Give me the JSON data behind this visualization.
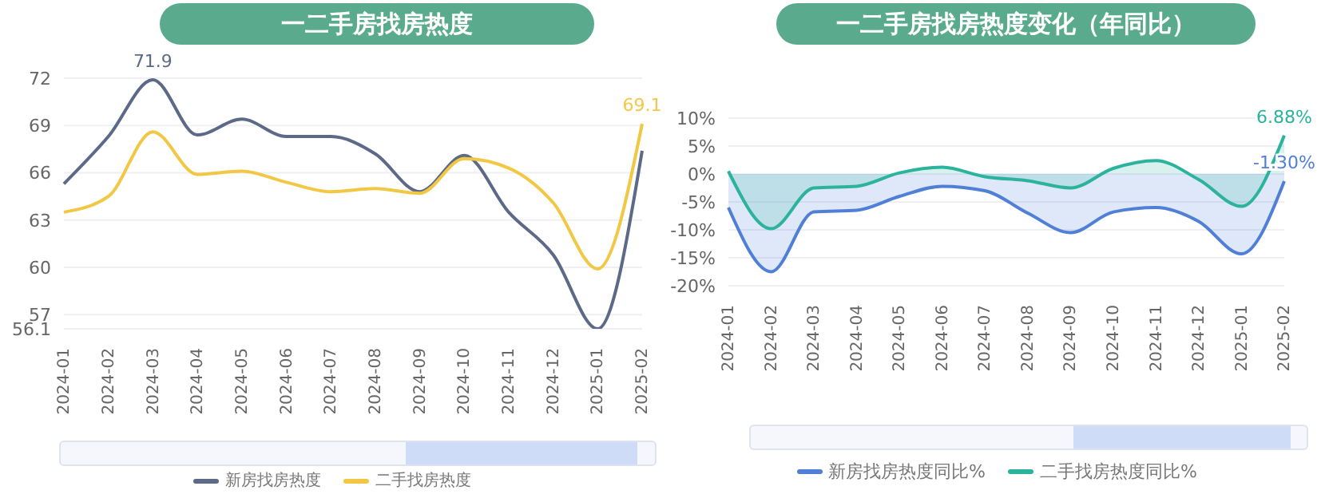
{
  "chart_data": [
    {
      "type": "line",
      "title": "一二手房找房热度",
      "categories": [
        "2024-01",
        "2024-02",
        "2024-03",
        "2024-04",
        "2024-05",
        "2024-06",
        "2024-07",
        "2024-08",
        "2024-09",
        "2024-10",
        "2024-11",
        "2024-12",
        "2025-01",
        "2025-02"
      ],
      "series": [
        {
          "name": "新房找房热度",
          "color": "#5c6a87",
          "values": [
            65.3,
            68.3,
            71.9,
            68.4,
            69.4,
            68.3,
            68.3,
            67.2,
            64.8,
            67.1,
            63.5,
            60.8,
            56.1,
            67.4
          ],
          "value_labels": [
            null,
            null,
            "71.9",
            null,
            null,
            null,
            null,
            null,
            null,
            null,
            null,
            null,
            null,
            null
          ]
        },
        {
          "name": "二手找房热度",
          "color": "#f2c744",
          "values": [
            63.5,
            64.5,
            68.6,
            65.9,
            66.1,
            65.4,
            64.8,
            65.0,
            64.7,
            66.9,
            66.3,
            64.1,
            59.9,
            69.1
          ],
          "value_labels": [
            null,
            null,
            null,
            null,
            null,
            null,
            null,
            null,
            null,
            null,
            null,
            null,
            null,
            "69.1"
          ]
        }
      ],
      "ylim": [
        56.1,
        72
      ],
      "yticks": [
        56.1,
        57,
        60,
        63,
        66,
        69,
        72
      ],
      "grid": "y",
      "legend": "bottom",
      "marker": "none"
    },
    {
      "type": "area",
      "title": "一二手房找房热度变化（年同比）",
      "categories": [
        "2024-01",
        "2024-02",
        "2024-03",
        "2024-04",
        "2024-05",
        "2024-06",
        "2024-07",
        "2024-08",
        "2024-09",
        "2024-10",
        "2024-11",
        "2024-12",
        "2025-01",
        "2025-02"
      ],
      "series": [
        {
          "name": "新房找房热度同比%",
          "color": "#4f7fd6",
          "values": [
            -6.0,
            -17.5,
            -6.8,
            -6.5,
            -4.0,
            -2.2,
            -3.0,
            -7.0,
            -10.5,
            -6.8,
            -6.0,
            -8.5,
            -14.3,
            -1.3
          ],
          "value_labels": [
            null,
            null,
            null,
            null,
            null,
            null,
            null,
            null,
            null,
            null,
            null,
            null,
            null,
            "-1.30%"
          ]
        },
        {
          "name": "二手找房热度同比%",
          "color": "#2bb39e",
          "values": [
            0.5,
            -9.8,
            -2.5,
            -2.2,
            0.2,
            1.2,
            -0.5,
            -1.2,
            -2.5,
            1.0,
            2.4,
            -1.0,
            -5.8,
            6.88
          ],
          "value_labels": [
            null,
            null,
            null,
            null,
            null,
            null,
            null,
            null,
            null,
            null,
            null,
            null,
            null,
            "6.88%"
          ]
        }
      ],
      "ylim": [
        -20,
        10
      ],
      "yticks": [
        {
          "value": -20,
          "label": "-20%"
        },
        {
          "value": -15,
          "label": "-15%"
        },
        {
          "value": -10,
          "label": "-10%"
        },
        {
          "value": -5,
          "label": "-5%"
        },
        {
          "value": 0,
          "label": "0%"
        },
        {
          "value": 5,
          "label": "5%"
        },
        {
          "value": 10,
          "label": "10%"
        }
      ],
      "grid": "y",
      "legend": "bottom",
      "marker": "none"
    }
  ]
}
